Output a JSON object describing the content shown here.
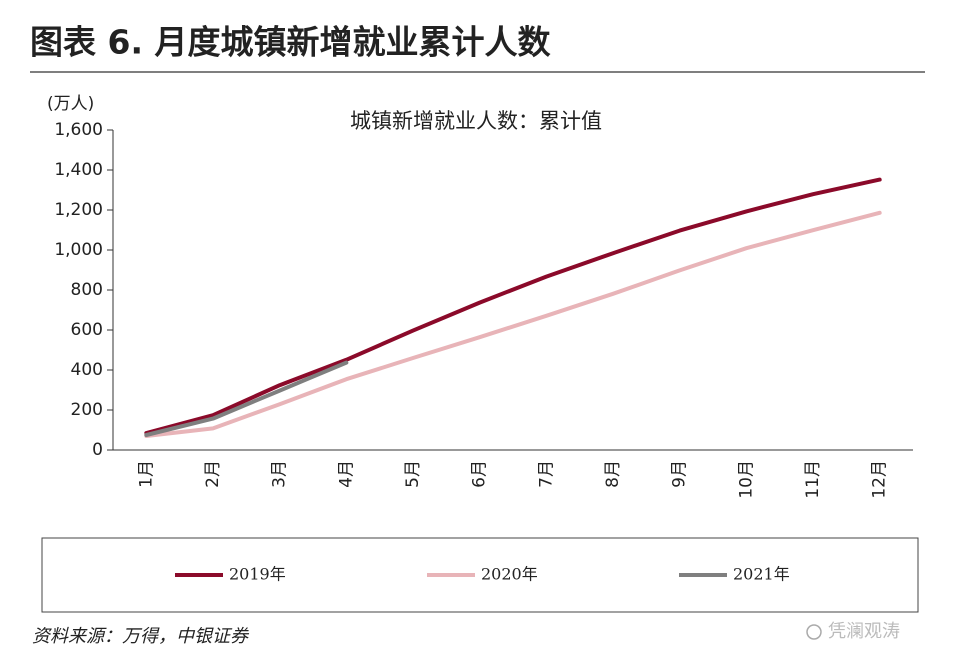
{
  "header": {
    "title": "图表 6. 月度城镇新增就业累计人数"
  },
  "chart_data": {
    "type": "line",
    "title": "城镇新增就业人数：累计值",
    "y_label": "(万人)",
    "categories": [
      "1月",
      "2月",
      "3月",
      "4月",
      "5月",
      "6月",
      "7月",
      "8月",
      "9月",
      "10月",
      "11月",
      "12月"
    ],
    "series": [
      {
        "name": "2019年",
        "color": "#8b0a2a",
        "values": [
          85,
          174,
          324,
          451,
          597,
          737,
          867,
          984,
          1097,
          1193,
          1279,
          1352
        ]
      },
      {
        "name": "2020年",
        "color": "#e8b4b8",
        "values": [
          70,
          108,
          229,
          354,
          460,
          564,
          671,
          781,
          898,
          1009,
          1099,
          1186
        ]
      },
      {
        "name": "2021年",
        "color": "#7f7f7f",
        "values": [
          75,
          157,
          297,
          437,
          null,
          null,
          null,
          null,
          null,
          null,
          null,
          null
        ]
      }
    ],
    "ylim": [
      0,
      1600
    ],
    "yticks": [
      0,
      200,
      400,
      600,
      800,
      {
        "value": 1000,
        "label": "1,000"
      },
      {
        "value": 1200,
        "label": "1,200"
      },
      {
        "value": 1400,
        "label": "1,400"
      },
      {
        "value": 1600,
        "label": "1,600"
      }
    ],
    "legend": "bottom"
  },
  "footer": {
    "source": "资料来源：万得，中银证券",
    "watermark": "凭澜观涛"
  }
}
